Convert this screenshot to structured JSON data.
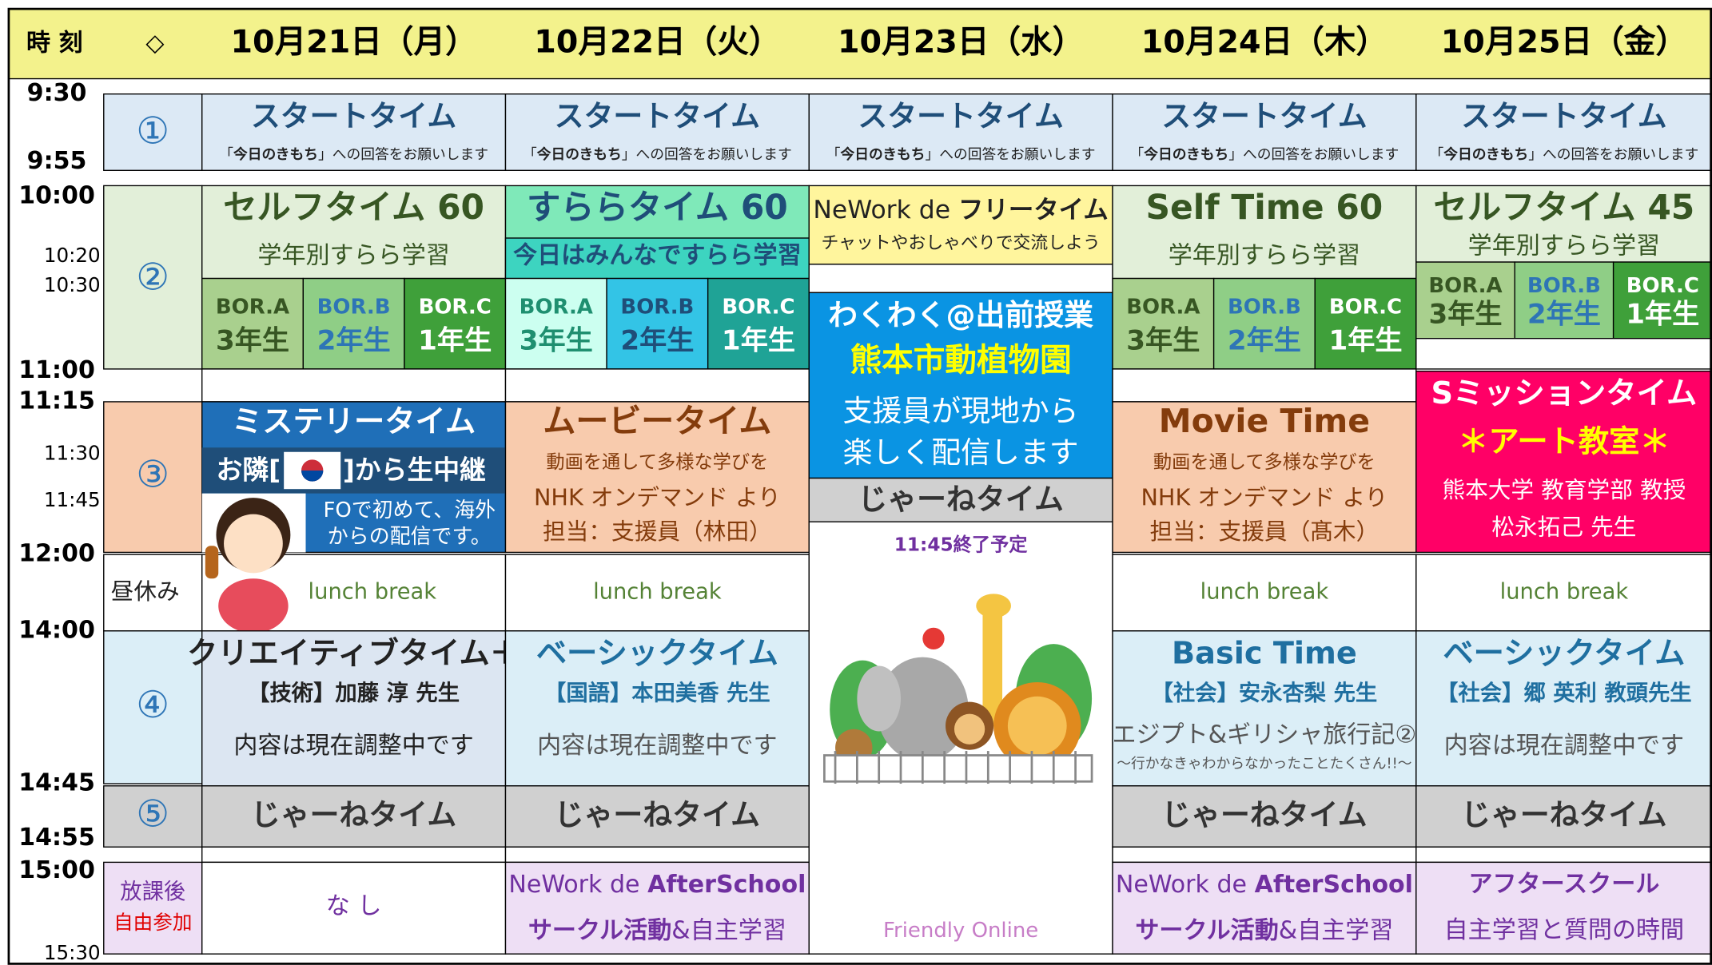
{
  "header": {
    "time_label": "時 刻",
    "marker": "◇"
  },
  "times": [
    "9:30",
    "9:55",
    "10:00",
    "10:20",
    "10:30",
    "11:00",
    "11:15",
    "11:30",
    "11:45",
    "12:00",
    "14:00",
    "14:45",
    "14:55",
    "15:00",
    "15:30"
  ],
  "periods": {
    "p1": "①",
    "p2": "②",
    "p3": "③",
    "lunch": "昼休み",
    "p4": "④",
    "p5": "⑤",
    "after": "放課後",
    "after_note": "自由参加"
  },
  "days": [
    {
      "date": "10月21日（月）",
      "start": {
        "title": "スタートタイム",
        "note": [
          "「",
          "今日のきもち",
          "」への回答をお願いします"
        ]
      },
      "p2": {
        "title": "セルフタイム 60",
        "subtitle": "学年別すらら学習",
        "groups": [
          {
            "name": "BOR.A",
            "grade": "3年生"
          },
          {
            "name": "BOR.B",
            "grade": "2年生"
          },
          {
            "name": "BOR.C",
            "grade": "1年生"
          }
        ]
      },
      "p3": {
        "title": "ミステリータイム",
        "live_before": "お隣[",
        "live_after": "]から生中継",
        "lines": [
          "FOで初めて、海外",
          "からの配信です。"
        ]
      },
      "lunch": "lunch break",
      "p4": {
        "title": "クリエイティブタイム＋",
        "teacher": "【技術】加藤 淳 先生",
        "lines": [
          "内容は現在調整中です"
        ]
      },
      "p5": "じゃーねタイム",
      "after": {
        "lines": [
          [
            {
              "text": "な し"
            }
          ]
        ]
      }
    },
    {
      "date": "10月22日（火）",
      "start": {
        "title": "スタートタイム",
        "note": [
          "「",
          "今日のきもち",
          "」への回答をお願いします"
        ]
      },
      "p2": {
        "title": "すららタイム 60",
        "subtitle": "今日はみんなですらら学習",
        "groups": [
          {
            "name": "BOR.A",
            "grade": "3年生"
          },
          {
            "name": "BOR.B",
            "grade": "2年生"
          },
          {
            "name": "BOR.C",
            "grade": "1年生"
          }
        ]
      },
      "p3": {
        "title": "ムービータイム",
        "note": "動画を通して多様な学びを",
        "lines": [
          "NHK オンデマンド より",
          "担当：支援員（林田）"
        ]
      },
      "lunch": "lunch break",
      "p4": {
        "title": "ベーシックタイム",
        "teacher": "【国語】本田美香 先生",
        "lines": [
          "内容は現在調整中です"
        ]
      },
      "p5": "じゃーねタイム",
      "after": {
        "lines": [
          [
            {
              "text": "NeWork de "
            },
            {
              "text": "AfterSchool",
              "bold": true
            }
          ],
          [
            {
              "text": "サークル活動",
              "bold": true
            },
            {
              "text": "&自主学習"
            }
          ]
        ]
      }
    },
    {
      "date": "10月23日（水）",
      "start": {
        "title": "スタートタイム",
        "note": [
          "「",
          "今日のきもち",
          "」への回答をお願いします"
        ]
      },
      "p2": {
        "title_parts": [
          {
            "text": "NeWork de "
          },
          {
            "text": "フリータイム",
            "bold": true
          }
        ],
        "note": "チャットやおしゃべりで交流しよう"
      },
      "event": {
        "lines": [
          "わくわく@出前授業",
          "熊本市動植物園",
          "支援員が現地から",
          "楽しく配信します"
        ]
      },
      "closing": "じゃーねタイム",
      "end_note": "11:45終了予定",
      "footer": "Friendly Online"
    },
    {
      "date": "10月24日（木）",
      "start": {
        "title": "スタートタイム",
        "note": [
          "「",
          "今日のきもち",
          "」への回答をお願いします"
        ]
      },
      "p2": {
        "title": "Self Time 60",
        "subtitle": "学年別すらら学習",
        "groups": [
          {
            "name": "BOR.A",
            "grade": "3年生"
          },
          {
            "name": "BOR.B",
            "grade": "2年生"
          },
          {
            "name": "BOR.C",
            "grade": "1年生"
          }
        ]
      },
      "p3": {
        "title": "Movie Time",
        "note": "動画を通して多様な学びを",
        "lines": [
          "NHK オンデマンド より",
          "担当：支援員（髙木）"
        ]
      },
      "lunch": "lunch break",
      "p4": {
        "title": "Basic Time",
        "teacher": "【社会】安永杏梨 先生",
        "lines": [
          "エジプト&ギリシャ旅行記②"
        ],
        "subnote": "〜行かなきゃわからなかったことたくさん!!〜"
      },
      "p5": "じゃーねタイム",
      "after": {
        "lines": [
          [
            {
              "text": "NeWork de "
            },
            {
              "text": "AfterSchool",
              "bold": true
            }
          ],
          [
            {
              "text": "サークル活動",
              "bold": true
            },
            {
              "text": "&自主学習"
            }
          ]
        ]
      }
    },
    {
      "date": "10月25日（金）",
      "start": {
        "title": "スタートタイム",
        "note": [
          "「",
          "今日のきもち",
          "」への回答をお願いします"
        ]
      },
      "p2": {
        "title": "セルフタイム 45",
        "subtitle": "学年別すらら学習",
        "groups": [
          {
            "name": "BOR.A",
            "grade": "3年生"
          },
          {
            "name": "BOR.B",
            "grade": "2年生"
          },
          {
            "name": "BOR.C",
            "grade": "1年生"
          }
        ]
      },
      "p3": {
        "title": "Sミッションタイム",
        "subtitle": "＊アート教室＊",
        "lines": [
          "熊本大学 教育学部 教授",
          "松永拓己 先生"
        ]
      },
      "lunch": "lunch break",
      "p4": {
        "title": "ベーシックタイム",
        "teacher": "【社会】郷 英利 教頭先生",
        "lines": [
          "内容は現在調整中です"
        ]
      },
      "p5": "じゃーねタイム",
      "after": {
        "lines": [
          [
            {
              "text": "アフタースクール",
              "bold": true
            }
          ],
          [
            {
              "text": "自主学習と質問の時間"
            }
          ]
        ]
      }
    }
  ]
}
